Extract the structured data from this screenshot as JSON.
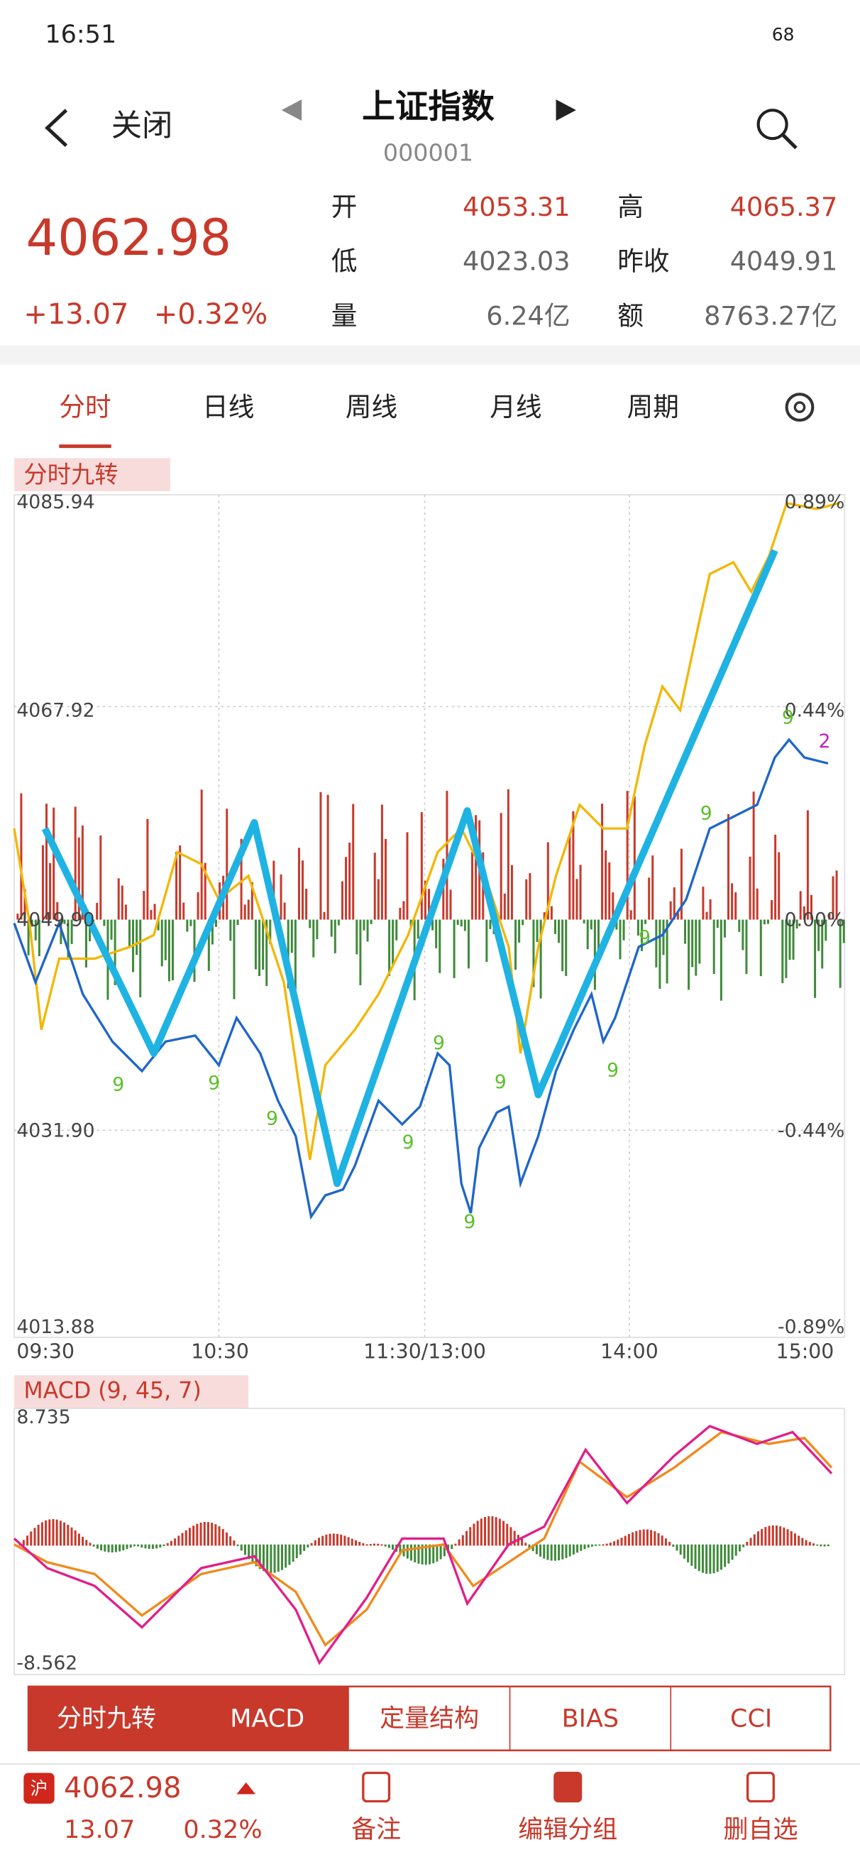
{
  "status_bar": {
    "time": "16:51",
    "battery": "68"
  },
  "header": {
    "back": "关闭",
    "title": "上证指数",
    "code": "000001"
  },
  "quote": {
    "price": "4062.98",
    "change": "+13.07",
    "change_pct": "+0.32%",
    "fields": [
      {
        "label": "开",
        "value": "4053.31"
      },
      {
        "label": "高",
        "value": "4065.37"
      },
      {
        "label": "低",
        "value": "4023.03"
      },
      {
        "label": "昨收",
        "value": "4049.91"
      },
      {
        "label": "量",
        "value": "6.24亿"
      },
      {
        "label": "额",
        "value": "8763.27亿"
      }
    ]
  },
  "tabs": [
    "分时",
    "日线",
    "周线",
    "月线",
    "周期"
  ],
  "chart": {
    "indicator": "分时九转",
    "y_left": [
      "4085.94",
      "4067.92",
      "4049.90",
      "4031.90",
      "4013.88"
    ],
    "y_right": [
      "0.89%",
      "0.44%",
      "0.00%",
      "-0.44%",
      "-0.89%"
    ],
    "x_labels": [
      "09:30",
      "10:30",
      "11:30/13:00",
      "14:00",
      "15:00"
    ],
    "markers": [
      "9",
      "9",
      "9",
      "9",
      "9",
      "9",
      "9",
      "9",
      "9",
      "9",
      "9",
      "2"
    ]
  },
  "macd": {
    "label": "MACD (9, 45, 7)",
    "max": "8.735",
    "min": "-8.562"
  },
  "indicator_tabs": [
    "分时九转",
    "MACD",
    "定量结构",
    "BIAS",
    "CCI"
  ],
  "footer": {
    "market": "沪",
    "price": "4062.98",
    "change": "13.07",
    "change_pct": "0.32%",
    "actions": [
      "备注",
      "编辑分组",
      "删自选"
    ]
  }
}
